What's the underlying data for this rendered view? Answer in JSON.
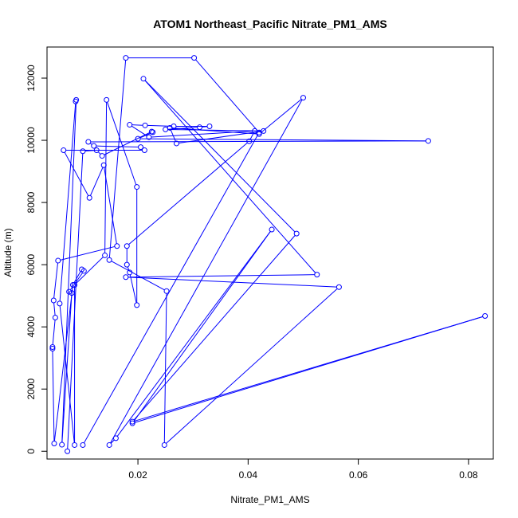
{
  "chart_data": {
    "type": "line",
    "title": "ATOM1 Northeast_Pacific Nitrate_PM1_AMS",
    "xlabel": "Nitrate_PM1_AMS",
    "ylabel": "Altitude (m)",
    "xlim": [
      0.0035,
      0.0845
    ],
    "ylim": [
      -250,
      13000
    ],
    "x_ticks": [
      0.02,
      0.04,
      0.06,
      0.08
    ],
    "x_tick_labels": [
      "0.02",
      "0.04",
      "0.06",
      "0.08"
    ],
    "y_ticks": [
      0,
      2000,
      4000,
      6000,
      8000,
      10000,
      12000
    ],
    "y_tick_labels": [
      "0",
      "2000",
      "4000",
      "6000",
      "8000",
      "10000",
      "12000"
    ],
    "marker": "open-circle",
    "grid": false,
    "legend": "none",
    "series": [
      {
        "color": "#0000ff",
        "points": [
          [
            0.0072,
            0.0
          ],
          [
            0.01,
            9650
          ],
          [
            0.0125,
            9680
          ],
          [
            0.0135,
            9500
          ],
          [
            0.0225,
            10280
          ],
          [
            0.0227,
            10260
          ],
          [
            0.02,
            10050
          ],
          [
            0.0727,
            9980
          ],
          [
            0.011,
            9950
          ],
          [
            0.012,
            9820
          ],
          [
            0.0205,
            9780
          ],
          [
            0.0212,
            9680
          ],
          [
            0.0065,
            9680
          ],
          [
            0.0112,
            8150
          ],
          [
            0.0138,
            9200
          ],
          [
            0.0162,
            6600
          ],
          [
            0.0055,
            6130
          ],
          [
            0.0047,
            4850
          ],
          [
            0.005,
            4300
          ],
          [
            0.0045,
            3350
          ],
          [
            0.0045,
            3300
          ],
          [
            0.0048,
            250
          ],
          [
            0.0082,
            5350
          ],
          [
            0.0098,
            5850
          ],
          [
            0.0102,
            5800
          ],
          [
            0.0075,
            5130
          ],
          [
            0.008,
            5090
          ],
          [
            0.0062,
            210
          ],
          [
            0.0088,
            11300
          ],
          [
            0.0087,
            11250
          ],
          [
            0.0058,
            4750
          ],
          [
            0.0085,
            200
          ],
          [
            0.0085,
            5350
          ],
          [
            0.014,
            6300
          ],
          [
            0.0143,
            11300
          ],
          [
            0.0198,
            8500
          ],
          [
            0.0198,
            4700
          ],
          [
            0.0185,
            5750
          ],
          [
            0.018,
            6000
          ],
          [
            0.018,
            6600
          ],
          [
            0.0402,
            9970
          ],
          [
            0.0412,
            10300
          ],
          [
            0.022,
            10100
          ],
          [
            0.0185,
            10500
          ],
          [
            0.0213,
            10480
          ],
          [
            0.0265,
            10450
          ],
          [
            0.033,
            10450
          ],
          [
            0.0312,
            10420
          ],
          [
            0.025,
            10350
          ],
          [
            0.0428,
            10300
          ],
          [
            0.027,
            9900
          ],
          [
            0.0258,
            10400
          ],
          [
            0.042,
            10200
          ],
          [
            0.05,
            11370
          ],
          [
            0.0148,
            200
          ],
          [
            0.016,
            420
          ],
          [
            0.0443,
            7130
          ],
          [
            0.019,
            900
          ],
          [
            0.083,
            4350
          ],
          [
            0.019,
            950
          ],
          [
            0.0488,
            7000
          ],
          [
            0.021,
            11980
          ],
          [
            0.0525,
            5680
          ],
          [
            0.0178,
            5600
          ],
          [
            0.0565,
            5280
          ],
          [
            0.0248,
            200
          ],
          [
            0.0252,
            5150
          ],
          [
            0.0148,
            6150
          ],
          [
            0.0178,
            12650
          ],
          [
            0.0302,
            12650
          ],
          [
            0.042,
            10250
          ],
          [
            0.01,
            200
          ]
        ]
      }
    ]
  }
}
